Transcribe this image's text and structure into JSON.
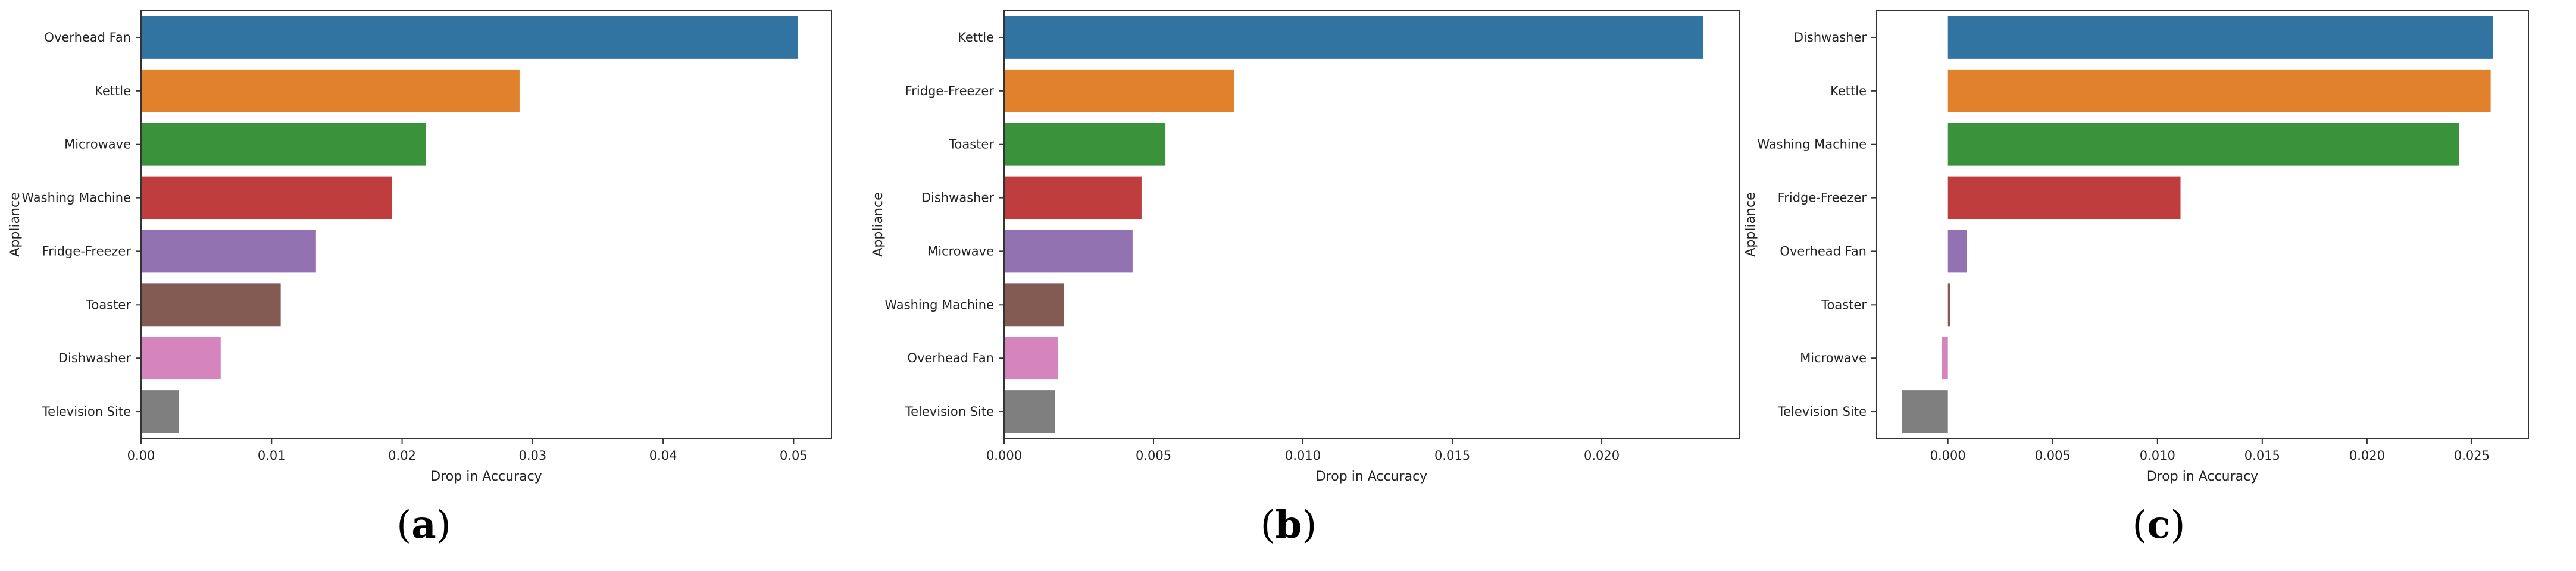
{
  "chart_data": [
    {
      "type": "bar",
      "orientation": "horizontal",
      "caption": "a",
      "categories": [
        "Overhead Fan",
        "Kettle",
        "Microwave",
        "Washing Machine",
        "Fridge-Freezer",
        "Toaster",
        "Dishwasher",
        "Television Site"
      ],
      "values": [
        0.0503,
        0.029,
        0.0218,
        0.0192,
        0.0134,
        0.0107,
        0.0061,
        0.0029
      ],
      "xlabel": "Drop in Accuracy",
      "ylabel": "Appliance",
      "xlim": [
        0,
        0.0529
      ],
      "xticks": [
        0.0,
        0.01,
        0.02,
        0.03,
        0.04,
        0.05
      ],
      "xtick_labels": [
        "0.00",
        "0.01",
        "0.02",
        "0.03",
        "0.04",
        "0.05"
      ],
      "grid": false,
      "colors": [
        "#3274a1",
        "#e1812c",
        "#3a923a",
        "#c03d3e",
        "#9372b2",
        "#845b53",
        "#d684bd",
        "#7f7f7f"
      ]
    },
    {
      "type": "bar",
      "orientation": "horizontal",
      "caption": "b",
      "categories": [
        "Kettle",
        "Fridge-Freezer",
        "Toaster",
        "Dishwasher",
        "Microwave",
        "Washing Machine",
        "Overhead Fan",
        "Television Site"
      ],
      "values": [
        0.0234,
        0.0077,
        0.0054,
        0.0046,
        0.0043,
        0.002,
        0.0018,
        0.0017
      ],
      "xlabel": "Drop in Accuracy",
      "ylabel": "Appliance",
      "xlim": [
        0,
        0.0246
      ],
      "xticks": [
        0.0,
        0.005,
        0.01,
        0.015,
        0.02
      ],
      "xtick_labels": [
        "0.000",
        "0.005",
        "0.010",
        "0.015",
        "0.020"
      ],
      "grid": false,
      "colors": [
        "#3274a1",
        "#e1812c",
        "#3a923a",
        "#c03d3e",
        "#9372b2",
        "#845b53",
        "#d684bd",
        "#7f7f7f"
      ]
    },
    {
      "type": "bar",
      "orientation": "horizontal",
      "caption": "c",
      "categories": [
        "Dishwasher",
        "Kettle",
        "Washing Machine",
        "Fridge-Freezer",
        "Overhead Fan",
        "Toaster",
        "Microwave",
        "Television Site"
      ],
      "values": [
        0.026,
        0.0259,
        0.0244,
        0.0111,
        0.0009,
        0.0001,
        -0.0003,
        -0.0022
      ],
      "xlabel": "Drop in Accuracy",
      "ylabel": "Appliance",
      "xlim": [
        -0.0034,
        0.0277
      ],
      "xticks": [
        0.0,
        0.005,
        0.01,
        0.015,
        0.02,
        0.025
      ],
      "xtick_labels": [
        "0.000",
        "0.005",
        "0.010",
        "0.015",
        "0.020",
        "0.025"
      ],
      "grid": false,
      "colors": [
        "#3274a1",
        "#e1812c",
        "#3a923a",
        "#c03d3e",
        "#9372b2",
        "#845b53",
        "#d684bd",
        "#7f7f7f"
      ]
    }
  ]
}
